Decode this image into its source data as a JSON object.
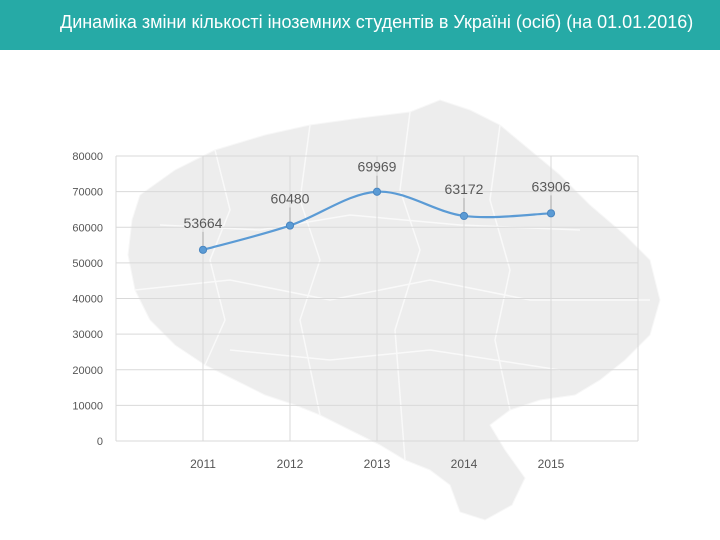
{
  "header": {
    "title": "Динаміка зміни кількості іноземних студентів в Україні (осіб) (на 01.01.2016)",
    "bg_color": "#26aaa6"
  },
  "chart_data": {
    "type": "line",
    "title": "Динаміка зміни кількості іноземних студентів в Україні (осіб) (на 01.01.2016)",
    "categories": [
      "2011",
      "2012",
      "2013",
      "2014",
      "2015"
    ],
    "series": [
      {
        "values": [
          53664,
          60480,
          69969,
          63172,
          63906
        ],
        "color": "#5b9bd5"
      }
    ],
    "data_labels": [
      "53664",
      "60480",
      "69969",
      "63172",
      "63906"
    ],
    "ylim": [
      0,
      80000
    ],
    "yticks": [
      "0",
      "10000",
      "20000",
      "30000",
      "40000",
      "50000",
      "60000",
      "70000",
      "80000"
    ],
    "grid": true,
    "smooth": true,
    "xlabel": "",
    "ylabel": "",
    "legend": "none"
  }
}
